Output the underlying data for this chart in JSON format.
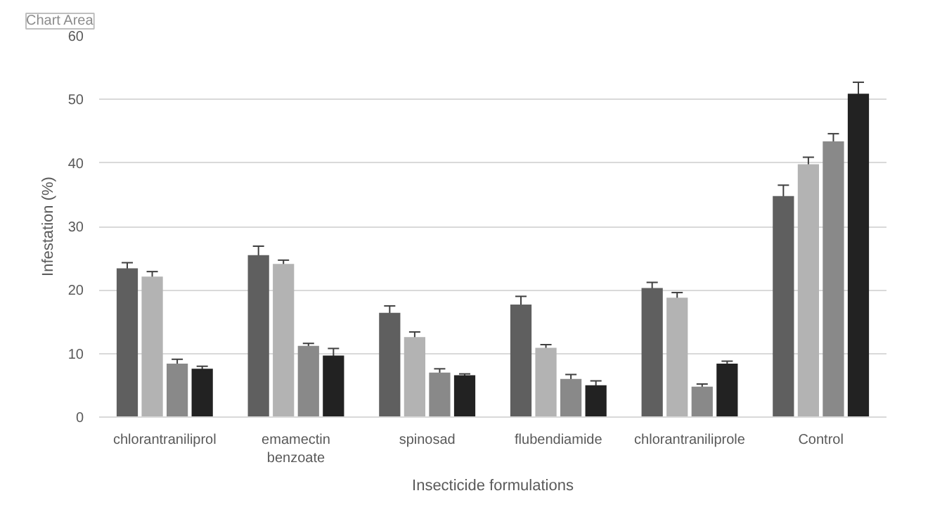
{
  "chart_data": {
    "type": "bar",
    "xlabel": "Insecticide formulations",
    "ylabel": "Infestation (%)",
    "categories": [
      "chlorantraniliprol",
      "emamectin benzoate",
      "spinosad",
      "flubendiamide",
      "chlorantraniliprole",
      "Control"
    ],
    "series": [
      {
        "color": "#5f5f5f",
        "values": [
          23.4,
          25.5,
          16.4,
          17.7,
          20.3,
          34.8
        ],
        "errors": [
          0.9,
          1.4,
          1.1,
          1.3,
          0.9,
          1.7
        ]
      },
      {
        "color": "#b3b3b3",
        "values": [
          22.1,
          24.1,
          12.6,
          10.9,
          18.8,
          39.8
        ],
        "errors": [
          0.8,
          0.6,
          0.8,
          0.5,
          0.8,
          1.1
        ]
      },
      {
        "color": "#898989",
        "values": [
          8.4,
          11.2,
          7.0,
          6.0,
          4.8,
          43.4
        ],
        "errors": [
          0.7,
          0.4,
          0.6,
          0.7,
          0.4,
          1.2
        ]
      },
      {
        "color": "#222222",
        "values": [
          7.6,
          9.7,
          6.6,
          5.0,
          8.4,
          50.9
        ],
        "errors": [
          0.4,
          1.1,
          0.2,
          0.7,
          0.4,
          1.8
        ]
      }
    ],
    "ylim": [
      0,
      60
    ],
    "yticks": [
      0,
      10,
      20,
      30,
      40,
      50,
      60
    ],
    "grid": "y",
    "annotations": [
      "Chart Area"
    ]
  }
}
